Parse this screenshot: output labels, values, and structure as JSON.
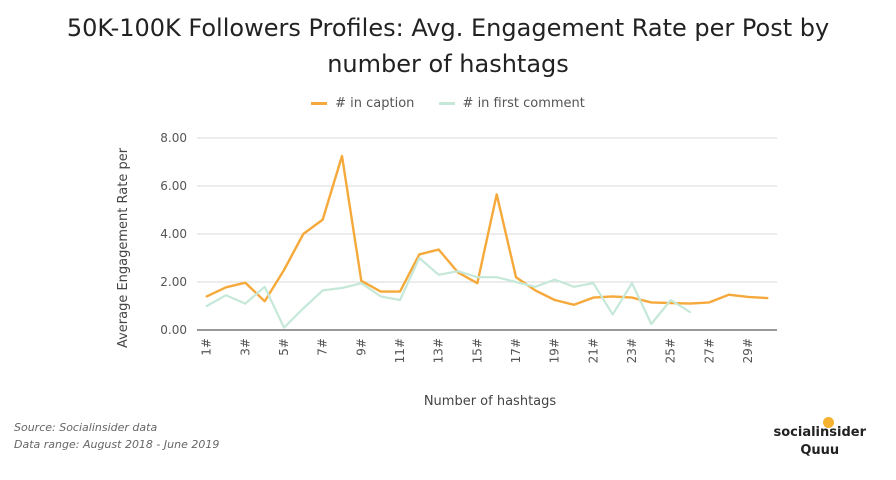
{
  "title_line1": "50K-100K Followers Profiles: Avg. Engagement Rate per Post by",
  "title_line2": "number of hashtags",
  "legend": [
    {
      "name": "# in caption",
      "color": "#f6a93b"
    },
    {
      "name": "# in first comment",
      "color": "#c5e8d8"
    }
  ],
  "source_line1": "Source: Socialinsider data",
  "source_line2": "Data range: August 2018 - June 2019",
  "brand_line1": "socialinsider",
  "brand_line2": "Quuu",
  "chart_data": {
    "type": "line",
    "xlabel": "Number of hashtags",
    "ylabel": "Average Engagement Rate per",
    "ylim": [
      0,
      8
    ],
    "yticks": [
      "0.00",
      "2.00",
      "4.00",
      "6.00",
      "8.00"
    ],
    "categories": [
      "1#",
      "2#",
      "3#",
      "4#",
      "5#",
      "6#",
      "7#",
      "8#",
      "9#",
      "10#",
      "11#",
      "12#",
      "13#",
      "14#",
      "15#",
      "16#",
      "17#",
      "18#",
      "19#",
      "20#",
      "21#",
      "22#",
      "23#",
      "24#",
      "25#",
      "26#",
      "27#",
      "28#",
      "29#",
      "30#"
    ],
    "xtick_labels": [
      "1#",
      "3#",
      "5#",
      "7#",
      "9#",
      "11#",
      "13#",
      "15#",
      "17#",
      "19#",
      "21#",
      "23#",
      "25#",
      "27#",
      "29#"
    ],
    "grid": true,
    "legend_position": "top-center",
    "series": [
      {
        "name": "# in caption",
        "color": "#f6a93b",
        "values": [
          1.4,
          1.78,
          1.97,
          1.2,
          2.5,
          4.0,
          4.6,
          7.25,
          2.05,
          1.6,
          1.6,
          3.15,
          3.35,
          2.4,
          1.95,
          5.65,
          2.2,
          1.65,
          1.25,
          1.05,
          1.35,
          1.4,
          1.35,
          1.15,
          1.12,
          1.1,
          1.15,
          1.47,
          1.38,
          1.33
        ]
      },
      {
        "name": "# in first comment",
        "color": "#c5e8d8",
        "values": [
          1.0,
          1.45,
          1.1,
          1.8,
          0.1,
          0.9,
          1.65,
          1.75,
          1.95,
          1.4,
          1.25,
          3.0,
          2.3,
          2.45,
          2.2,
          2.2,
          2.0,
          1.8,
          2.1,
          1.8,
          1.95,
          0.65,
          1.95,
          0.25,
          1.25,
          0.75,
          null,
          null,
          null,
          null
        ]
      }
    ]
  }
}
